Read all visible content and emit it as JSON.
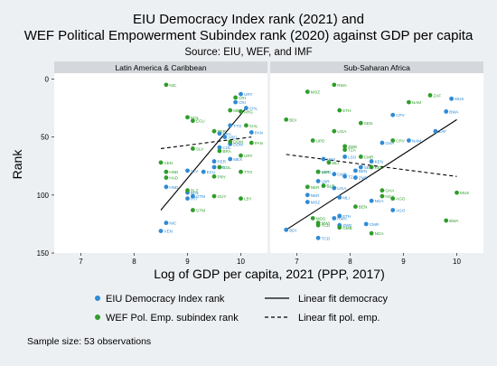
{
  "title_line1": "EIU Democracy Index rank (2021) and",
  "title_line2": "WEF Political Empowerment Subindex rank (2020) against GDP per capita",
  "source": "Source: EIU, WEF, and IMF",
  "sample_note": "Sample size: 53 observations",
  "colors": {
    "democracy": "#2f8ad4",
    "wef": "#2f9e2a",
    "background": "#edf0f3",
    "panel": "#ffffff",
    "strip": "#d4d8dd"
  },
  "legend": {
    "democracy": "EIU Democracy Index rank",
    "wef": "WEF Pol. Emp. subindex rank",
    "fit_democracy": "Linear fit democracy",
    "fit_wef": "Linear fit pol. emp."
  },
  "chart_data": {
    "type": "scatter",
    "xlabel": "Log of GDP per capita, 2021 (PPP, 2017)",
    "ylabel": "Rank",
    "xlim": [
      6.5,
      10.5
    ],
    "ylim": [
      150,
      -5
    ],
    "xticks": [
      7,
      8,
      9,
      10
    ],
    "yticks": [
      0,
      50,
      100,
      150
    ],
    "grid": false,
    "legend_position": "bottom",
    "panels": [
      {
        "name": "Latin America & Caribbean",
        "series": [
          {
            "name": "EIU Democracy Index rank",
            "points": [
              {
                "label": "CHL",
                "x": 10.1,
                "y": 25
              },
              {
                "label": "URY",
                "x": 10.0,
                "y": 13
              },
              {
                "label": "CRI",
                "x": 9.9,
                "y": 20
              },
              {
                "label": "PAN",
                "x": 10.2,
                "y": 46
              },
              {
                "label": "TTO",
                "x": 9.8,
                "y": 40
              },
              {
                "label": "ARG",
                "x": 9.7,
                "y": 50
              },
              {
                "label": "BRA",
                "x": 9.6,
                "y": 47
              },
              {
                "label": "COL",
                "x": 9.6,
                "y": 59
              },
              {
                "label": "MEX",
                "x": 9.8,
                "y": 69
              },
              {
                "label": "PER",
                "x": 9.5,
                "y": 71
              },
              {
                "label": "DOM",
                "x": 9.8,
                "y": 56
              },
              {
                "label": "PRY",
                "x": 9.5,
                "y": 76
              },
              {
                "label": "ECU",
                "x": 9.3,
                "y": 80
              },
              {
                "label": "SLV",
                "x": 9.0,
                "y": 79
              },
              {
                "label": "BOL",
                "x": 9.0,
                "y": 98
              },
              {
                "label": "GTM",
                "x": 9.1,
                "y": 101
              },
              {
                "label": "HND",
                "x": 8.6,
                "y": 93
              },
              {
                "label": "NIC",
                "x": 8.6,
                "y": 124
              },
              {
                "label": "VEN",
                "x": 8.5,
                "y": 131
              },
              {
                "label": "HTI",
                "x": 9.0,
                "y": 103
              }
            ]
          },
          {
            "name": "WEF Pol. Emp. subindex rank",
            "points": [
              {
                "label": "NIC",
                "x": 8.6,
                "y": 5
              },
              {
                "label": "CRI",
                "x": 9.9,
                "y": 16
              },
              {
                "label": "MEX",
                "x": 9.8,
                "y": 27
              },
              {
                "label": "ARG",
                "x": 10.0,
                "y": 28
              },
              {
                "label": "BOL",
                "x": 9.0,
                "y": 33
              },
              {
                "label": "ECU",
                "x": 9.1,
                "y": 36
              },
              {
                "label": "CHL",
                "x": 10.1,
                "y": 40
              },
              {
                "label": "PER",
                "x": 9.5,
                "y": 45
              },
              {
                "label": "DOM",
                "x": 9.8,
                "y": 54
              },
              {
                "label": "SLV",
                "x": 9.1,
                "y": 60
              },
              {
                "label": "PAN",
                "x": 10.2,
                "y": 55
              },
              {
                "label": "BRA",
                "x": 9.6,
                "y": 62
              },
              {
                "label": "URY",
                "x": 10.0,
                "y": 66
              },
              {
                "label": "VEN",
                "x": 8.5,
                "y": 72
              },
              {
                "label": "HND",
                "x": 8.6,
                "y": 80
              },
              {
                "label": "HAD",
                "x": 8.6,
                "y": 85
              },
              {
                "label": "COL",
                "x": 9.6,
                "y": 76
              },
              {
                "label": "PRY",
                "x": 9.5,
                "y": 84
              },
              {
                "label": "TTO",
                "x": 10.0,
                "y": 80
              },
              {
                "label": "BLZ",
                "x": 9.0,
                "y": 96
              },
              {
                "label": "GUY",
                "x": 9.5,
                "y": 101
              },
              {
                "label": "LBY",
                "x": 10.0,
                "y": 103
              },
              {
                "label": "GTM",
                "x": 9.1,
                "y": 113
              }
            ]
          }
        ],
        "fits": {
          "democracy": {
            "x": [
              8.5,
              10.1
            ],
            "y": [
              113,
              25
            ]
          },
          "wef": {
            "x": [
              8.5,
              10.2
            ],
            "y": [
              60,
              50
            ]
          }
        }
      },
      {
        "name": "Sub-Saharan Africa",
        "series": [
          {
            "name": "EIU Democracy Index rank",
            "points": [
              {
                "label": "MUS",
                "x": 9.9,
                "y": 17
              },
              {
                "label": "CPV",
                "x": 8.8,
                "y": 31
              },
              {
                "label": "BWA",
                "x": 9.8,
                "y": 28
              },
              {
                "label": "ZAF",
                "x": 9.6,
                "y": 45
              },
              {
                "label": "NAM",
                "x": 9.1,
                "y": 53
              },
              {
                "label": "GHA",
                "x": 8.6,
                "y": 55
              },
              {
                "label": "LSO",
                "x": 7.9,
                "y": 67
              },
              {
                "label": "SEN",
                "x": 8.2,
                "y": 76
              },
              {
                "label": "KEN",
                "x": 8.4,
                "y": 71
              },
              {
                "label": "MWI",
                "x": 7.5,
                "y": 69
              },
              {
                "label": "MDG",
                "x": 7.4,
                "y": 80
              },
              {
                "label": "GMB",
                "x": 7.7,
                "y": 82
              },
              {
                "label": "ZMB",
                "x": 8.1,
                "y": 85
              },
              {
                "label": "TZA",
                "x": 7.9,
                "y": 84
              },
              {
                "label": "LBR",
                "x": 7.4,
                "y": 88
              },
              {
                "label": "UGA",
                "x": 7.7,
                "y": 94
              },
              {
                "label": "SLE",
                "x": 7.5,
                "y": 92
              },
              {
                "label": "NER",
                "x": 7.2,
                "y": 100
              },
              {
                "label": "NGA",
                "x": 8.4,
                "y": 105
              },
              {
                "label": "MOZ",
                "x": 7.2,
                "y": 106
              },
              {
                "label": "AGO",
                "x": 8.8,
                "y": 113
              },
              {
                "label": "ETH",
                "x": 7.8,
                "y": 118
              },
              {
                "label": "RWA",
                "x": 7.7,
                "y": 120
              },
              {
                "label": "CMR",
                "x": 8.3,
                "y": 125
              },
              {
                "label": "ZWE",
                "x": 7.8,
                "y": 126
              },
              {
                "label": "BDI",
                "x": 6.8,
                "y": 130
              },
              {
                "label": "TCD",
                "x": 7.4,
                "y": 137
              },
              {
                "label": "BEN",
                "x": 8.1,
                "y": 79
              },
              {
                "label": "MLI",
                "x": 7.8,
                "y": 102
              }
            ]
          },
          {
            "name": "WEF Pol. Emp. subindex rank",
            "points": [
              {
                "label": "RWA",
                "x": 7.7,
                "y": 5
              },
              {
                "label": "MOZ",
                "x": 7.2,
                "y": 11
              },
              {
                "label": "ZAF",
                "x": 9.5,
                "y": 14
              },
              {
                "label": "NAM",
                "x": 9.1,
                "y": 20
              },
              {
                "label": "ETH",
                "x": 7.8,
                "y": 27
              },
              {
                "label": "BDI",
                "x": 6.8,
                "y": 35
              },
              {
                "label": "SEN",
                "x": 8.2,
                "y": 38
              },
              {
                "label": "UGA",
                "x": 7.7,
                "y": 45
              },
              {
                "label": "CPV",
                "x": 8.8,
                "y": 53
              },
              {
                "label": "UPD",
                "x": 7.3,
                "y": 53
              },
              {
                "label": "ZWE",
                "x": 7.9,
                "y": 58
              },
              {
                "label": "TZA",
                "x": 7.9,
                "y": 61
              },
              {
                "label": "CMR",
                "x": 8.2,
                "y": 67
              },
              {
                "label": "MLI",
                "x": 7.6,
                "y": 72
              },
              {
                "label": "KEN",
                "x": 8.4,
                "y": 76
              },
              {
                "label": "LBR",
                "x": 7.4,
                "y": 80
              },
              {
                "label": "NER",
                "x": 7.2,
                "y": 93
              },
              {
                "label": "SLE",
                "x": 7.5,
                "y": 92
              },
              {
                "label": "GHA",
                "x": 8.6,
                "y": 96
              },
              {
                "label": "MUS",
                "x": 10.0,
                "y": 98
              },
              {
                "label": "AGO",
                "x": 8.8,
                "y": 103
              },
              {
                "label": "NGA",
                "x": 8.6,
                "y": 101
              },
              {
                "label": "BEN",
                "x": 8.1,
                "y": 110
              },
              {
                "label": "BWA",
                "x": 9.8,
                "y": 122
              },
              {
                "label": "MWI",
                "x": 7.4,
                "y": 124
              },
              {
                "label": "TCD",
                "x": 7.4,
                "y": 126
              },
              {
                "label": "MDG",
                "x": 7.3,
                "y": 120
              },
              {
                "label": "GMB",
                "x": 7.8,
                "y": 128
              },
              {
                "label": "NGA",
                "x": 8.4,
                "y": 133
              }
            ]
          }
        ],
        "fits": {
          "democracy": {
            "x": [
              6.8,
              10.0
            ],
            "y": [
              130,
              35
            ]
          },
          "wef": {
            "x": [
              6.8,
              10.0
            ],
            "y": [
              65,
              84
            ]
          }
        }
      }
    ]
  }
}
